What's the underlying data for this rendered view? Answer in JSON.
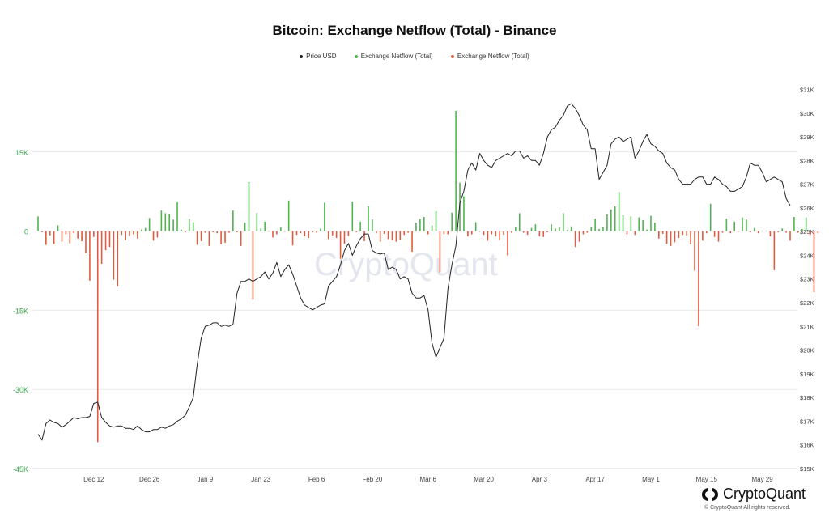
{
  "chart_data": {
    "type": "bar+line",
    "title": "Bitcoin: Exchange Netflow (Total) - Binance",
    "legend": {
      "placement": "top-center",
      "items": [
        {
          "label": "Price USD",
          "color": "#222222"
        },
        {
          "label": "Exchange Netflow (Total)",
          "color": "#52b352"
        },
        {
          "label": "Exchange Netflow (Total)",
          "color": "#e15b41"
        }
      ]
    },
    "left_axis": {
      "ticks": [
        15000,
        0,
        -15000,
        -30000,
        -45000
      ],
      "tick_labels": [
        "15K",
        "0",
        "-15K",
        "-30K",
        "-45K"
      ],
      "range": [
        -45000,
        30000
      ],
      "label_color": "#3aa84a"
    },
    "right_axis": {
      "ticks": [
        15000,
        16000,
        17000,
        18000,
        19000,
        20000,
        21000,
        22000,
        23000,
        24000,
        25000,
        26000,
        27000,
        28000,
        29000,
        30000,
        31000
      ],
      "tick_labels": [
        "$15K",
        "$16K",
        "$17K",
        "$18K",
        "$19K",
        "$20K",
        "$21K",
        "$22K",
        "$23K",
        "$24K",
        "$25K",
        "$26K",
        "$27K",
        "$28K",
        "$29K",
        "$30K",
        "$31K"
      ],
      "range": [
        15000,
        31700
      ]
    },
    "x_axis": {
      "start_label": "2022-11-28",
      "day_count": 190,
      "ticks": [
        {
          "label": "Dec 12",
          "day": 14
        },
        {
          "label": "Dec 26",
          "day": 28
        },
        {
          "label": "Jan 9",
          "day": 42
        },
        {
          "label": "Jan 23",
          "day": 56
        },
        {
          "label": "Feb 6",
          "day": 70
        },
        {
          "label": "Feb 20",
          "day": 84
        },
        {
          "label": "Mar 6",
          "day": 98
        },
        {
          "label": "Mar 20",
          "day": 112
        },
        {
          "label": "Apr 3",
          "day": 126
        },
        {
          "label": "Apr 17",
          "day": 140
        },
        {
          "label": "May 1",
          "day": 154
        },
        {
          "label": "May 15",
          "day": 168
        },
        {
          "label": "May 29",
          "day": 182
        }
      ]
    },
    "grid": {
      "horizontal": true,
      "vertical": false
    },
    "series": [
      {
        "name": "Price USD",
        "kind": "line",
        "color": "#222222",
        "values": [
          16450,
          16200,
          16900,
          17050,
          16950,
          16900,
          16750,
          16850,
          17000,
          17150,
          17100,
          17150,
          17150,
          17200,
          17750,
          17800,
          17150,
          16950,
          16800,
          16750,
          16800,
          16800,
          16700,
          16700,
          16650,
          16800,
          16650,
          16550,
          16550,
          16650,
          16650,
          16750,
          16700,
          16800,
          16850,
          17000,
          17100,
          17250,
          17600,
          18000,
          19400,
          20500,
          21000,
          21050,
          21150,
          21150,
          21000,
          21050,
          21000,
          21100,
          22400,
          22900,
          22900,
          23000,
          22900,
          23000,
          23100,
          23300,
          23000,
          23250,
          23700,
          23100,
          23400,
          23600,
          23200,
          22700,
          22200,
          21900,
          21800,
          21700,
          21800,
          21900,
          21950,
          22700,
          22900,
          23100,
          23600,
          24200,
          24500,
          24000,
          24400,
          24700,
          24900,
          24900,
          24200,
          24100,
          24050,
          24100,
          23400,
          23500,
          23400,
          23000,
          23100,
          23000,
          22400,
          22200,
          22200,
          22300,
          21700,
          20300,
          19700,
          20100,
          20500,
          22600,
          23600,
          24400,
          26200,
          26700,
          27600,
          27900,
          27600,
          28300,
          28000,
          27800,
          27700,
          28000,
          28100,
          28200,
          28300,
          28200,
          28400,
          28400,
          28100,
          28200,
          28000,
          28000,
          27800,
          28300,
          29000,
          29300,
          29400,
          29700,
          29900,
          30300,
          30400,
          30200,
          29900,
          29500,
          29300,
          28500,
          28500,
          27200,
          27500,
          27800,
          28700,
          28900,
          29000,
          28800,
          28900,
          29000,
          28100,
          28400,
          28800,
          29100,
          28700,
          28600,
          28400,
          28300,
          27900,
          27700,
          27600,
          27200,
          27000,
          27000,
          27000,
          27200,
          27300,
          27300,
          27000,
          27000,
          27300,
          27200,
          27000,
          26900,
          26700,
          26700,
          26800,
          26900,
          27300,
          27900,
          27800,
          27800,
          27500,
          27100,
          27200,
          27300,
          27200,
          27100,
          26400,
          26100
        ]
      },
      {
        "name": "Exchange Netflow (Total)",
        "kind": "bar",
        "positive_color": "#52b352",
        "negative_color": "#e15b41",
        "values": [
          2800,
          -200,
          -2600,
          -800,
          -2400,
          1100,
          -2000,
          -600,
          -2300,
          -400,
          -1400,
          -1900,
          -4200,
          -9400,
          -1100,
          -40000,
          -6200,
          -3600,
          -3000,
          -9200,
          -10500,
          -700,
          -1700,
          -900,
          -600,
          -1400,
          300,
          600,
          2500,
          -1800,
          -1200,
          3900,
          3400,
          3300,
          2200,
          5500,
          300,
          -200,
          2300,
          1700,
          -2600,
          -1900,
          -300,
          -2800,
          -200,
          -400,
          -2500,
          -2200,
          -300,
          3900,
          -200,
          -2800,
          1600,
          9300,
          -13000,
          3400,
          500,
          1800,
          -100,
          -1200,
          -600,
          700,
          -100,
          5800,
          -2700,
          -700,
          -400,
          -1000,
          -1300,
          -200,
          -300,
          500,
          5400,
          -1500,
          -800,
          -1300,
          -5200,
          -2400,
          -900,
          5600,
          -200,
          1800,
          -1900,
          4700,
          2200,
          -400,
          -2000,
          -500,
          -1500,
          -1700,
          -2000,
          -1600,
          -700,
          -300,
          -3900,
          1600,
          2300,
          2700,
          -600,
          1100,
          3800,
          -7800,
          -600,
          -600,
          3500,
          22800,
          9200,
          6600,
          -1000,
          -600,
          1700,
          -100,
          -700,
          -1800,
          -600,
          -1000,
          -1700,
          -700,
          -4600,
          -300,
          800,
          3400,
          -300,
          -700,
          600,
          1300,
          -1000,
          -1100,
          -200,
          1300,
          500,
          700,
          3400,
          200,
          900,
          -3000,
          -2000,
          -600,
          -300,
          800,
          2400,
          400,
          800,
          3200,
          4100,
          4700,
          7400,
          3000,
          -600,
          2800,
          -700,
          2600,
          2100,
          300,
          2900,
          1600,
          -1400,
          -500,
          -2400,
          -2800,
          -2100,
          -1300,
          -700,
          -800,
          -2500,
          -7500,
          -18000,
          -1800,
          -400,
          5200,
          -1100,
          -2000,
          -300,
          2400,
          -400,
          1800,
          -100,
          2600,
          2200,
          -200,
          600,
          -400,
          100,
          100,
          -1000,
          -7400,
          -200,
          500,
          -300,
          -1800,
          2700,
          -300,
          400,
          2600,
          -800,
          -11600,
          -400
        ]
      }
    ]
  },
  "watermark": "CryptoQuant",
  "brand": {
    "name": "CryptoQuant",
    "copyright": "© CryptoQuant All rights reserved."
  }
}
